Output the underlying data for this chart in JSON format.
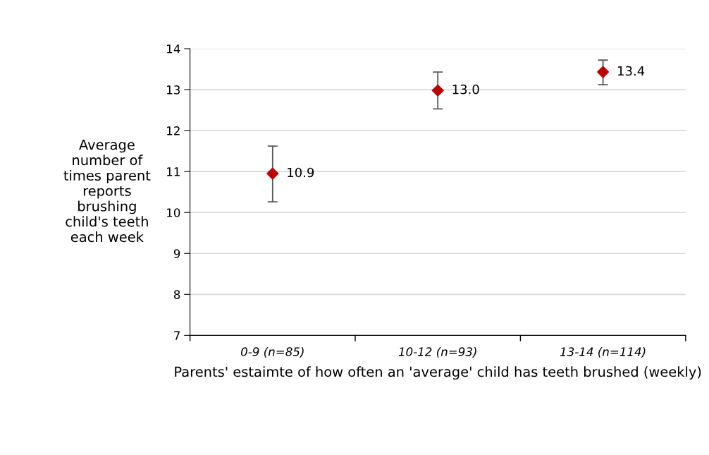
{
  "chart_data": {
    "type": "scatter",
    "categories": [
      "0-9 (n=85)",
      "10-12 (n=93)",
      "13-14 (n=114)"
    ],
    "values": [
      10.95,
      12.98,
      13.43
    ],
    "value_labels": [
      "10.9",
      "13.0",
      "13.4"
    ],
    "errors": [
      [
        10.26,
        11.62
      ],
      [
        12.53,
        13.43
      ],
      [
        13.12,
        13.72
      ]
    ],
    "color": "#c00000",
    "marker": "diamond",
    "xlabel": "Parents' estaimte of how often an 'average' child has teeth brushed (weekly)",
    "ylabel": "Average\nnumber of\ntimes parent\nreports\nbrushing\nchild's teeth\neach week",
    "ylim": [
      7,
      14
    ],
    "yticks": [
      7,
      8,
      9,
      10,
      11,
      12,
      13,
      14
    ],
    "grid": "y"
  }
}
